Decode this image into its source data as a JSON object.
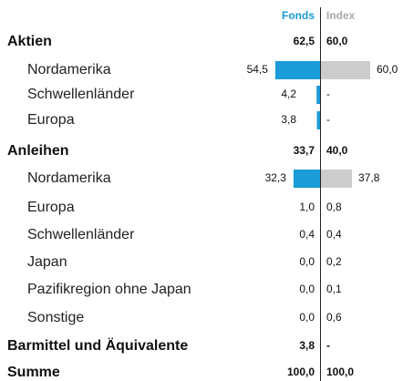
{
  "header": {
    "fonds": "Fonds",
    "index": "Index"
  },
  "colors": {
    "fonds": "#1b9bd7",
    "index": "#cccccc"
  },
  "rows": [
    {
      "label": "Aktien",
      "group": true,
      "fonds": 62.5,
      "fonds_label": "62,5",
      "index": 60.0,
      "index_label": "60,0"
    },
    {
      "label": "Nordamerika",
      "bar": true,
      "fonds": 54.5,
      "fonds_label": "54,5",
      "index": 60.0,
      "index_label": "60,0"
    },
    {
      "label": "Schwellenländer",
      "bar": true,
      "fonds": 4.2,
      "fonds_label": "4,2",
      "index": null,
      "index_label": "-"
    },
    {
      "label": "Europa",
      "bar": true,
      "fonds": 3.8,
      "fonds_label": "3,8",
      "index": null,
      "index_label": "-"
    },
    {
      "label": "Anleihen",
      "group": true,
      "fonds": 33.7,
      "fonds_label": "33,7",
      "index": 40.0,
      "index_label": "40,0"
    },
    {
      "label": "Nordamerika",
      "bar": true,
      "fonds": 32.3,
      "fonds_label": "32,3",
      "index": 37.8,
      "index_label": "37,8"
    },
    {
      "label": "Europa",
      "fonds": 1.0,
      "fonds_label": "1,0",
      "index": 0.8,
      "index_label": "0,8"
    },
    {
      "label": "Schwellenländer",
      "fonds": 0.4,
      "fonds_label": "0,4",
      "index": 0.4,
      "index_label": "0,4"
    },
    {
      "label": "Japan",
      "fonds": 0.0,
      "fonds_label": "0,0",
      "index": 0.2,
      "index_label": "0,2"
    },
    {
      "label": "Pazifikregion ohne Japan",
      "fonds": 0.0,
      "fonds_label": "0,0",
      "index": 0.1,
      "index_label": "0,1"
    },
    {
      "label": "Sonstige",
      "fonds": 0.0,
      "fonds_label": "0,0",
      "index": 0.6,
      "index_label": "0,6"
    },
    {
      "label": "Barmittel und Äquivalente",
      "group": true,
      "fonds": 3.8,
      "fonds_label": "3,8",
      "index": null,
      "index_label": "-"
    },
    {
      "label": "Summe",
      "group": true,
      "fonds": 100.0,
      "fonds_label": "100,0",
      "index": 100.0,
      "index_label": "100,0"
    }
  ]
}
